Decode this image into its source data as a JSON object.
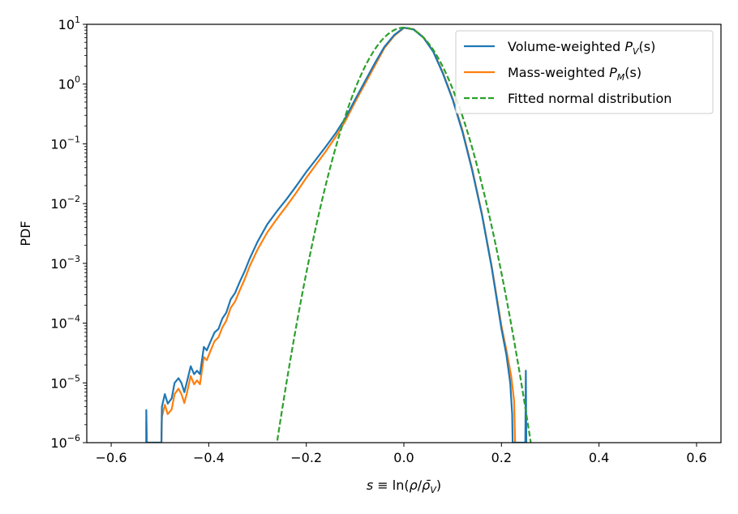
{
  "chart_data": {
    "type": "line",
    "title": "",
    "xlabel": "s ≡ ln(ρ/ρ̄_V)",
    "ylabel": "PDF",
    "y_scale": "log",
    "xlim": [
      -0.65,
      0.65
    ],
    "ylim": [
      1e-06,
      10
    ],
    "x_ticks": [
      -0.6,
      -0.4,
      -0.2,
      0.0,
      0.2,
      0.4,
      0.6
    ],
    "x_tick_labels": [
      "−0.6",
      "−0.4",
      "−0.2",
      "0.0",
      "0.2",
      "0.4",
      "0.6"
    ],
    "y_ticks": [
      1e-06,
      1e-05,
      0.0001,
      0.001,
      0.01,
      0.1,
      1,
      10
    ],
    "y_tick_labels": [
      {
        "base": "10",
        "exp": "−6"
      },
      {
        "base": "10",
        "exp": "−5"
      },
      {
        "base": "10",
        "exp": "−4"
      },
      {
        "base": "10",
        "exp": "−3"
      },
      {
        "base": "10",
        "exp": "−2"
      },
      {
        "base": "10",
        "exp": "−1"
      },
      {
        "base": "10",
        "exp": "0"
      },
      {
        "base": "10",
        "exp": "1"
      }
    ],
    "legend_position": "top-right",
    "series": [
      {
        "name": "Volume-weighted P_V(s)",
        "legend_label": "Volume-weighted ",
        "legend_math": {
          "sym": "P",
          "sub": "V",
          "arg": "(s)"
        },
        "color": "#1f77b4",
        "style": "solid",
        "points": [
          [
            -0.528,
            1e-06
          ],
          [
            -0.528,
            3.5e-06
          ],
          [
            -0.527,
            1e-06
          ],
          [
            -0.497,
            1e-06
          ],
          [
            -0.496,
            4e-06
          ],
          [
            -0.49,
            6.5e-06
          ],
          [
            -0.484,
            4.5e-06
          ],
          [
            -0.476,
            5.5e-06
          ],
          [
            -0.47,
            1e-05
          ],
          [
            -0.462,
            1.2e-05
          ],
          [
            -0.456,
            1e-05
          ],
          [
            -0.45,
            7e-06
          ],
          [
            -0.444,
            1.1e-05
          ],
          [
            -0.437,
            1.9e-05
          ],
          [
            -0.43,
            1.4e-05
          ],
          [
            -0.424,
            1.6e-05
          ],
          [
            -0.418,
            1.4e-05
          ],
          [
            -0.41,
            4e-05
          ],
          [
            -0.404,
            3.5e-05
          ],
          [
            -0.396,
            5e-05
          ],
          [
            -0.388,
            7e-05
          ],
          [
            -0.38,
            8e-05
          ],
          [
            -0.372,
            0.00012
          ],
          [
            -0.364,
            0.00015
          ],
          [
            -0.355,
            0.00025
          ],
          [
            -0.346,
            0.00032
          ],
          [
            -0.336,
            0.0005
          ],
          [
            -0.326,
            0.00075
          ],
          [
            -0.316,
            0.0012
          ],
          [
            -0.3,
            0.0023
          ],
          [
            -0.28,
            0.0045
          ],
          [
            -0.26,
            0.0075
          ],
          [
            -0.24,
            0.012
          ],
          [
            -0.22,
            0.02
          ],
          [
            -0.2,
            0.034
          ],
          [
            -0.18,
            0.055
          ],
          [
            -0.16,
            0.09
          ],
          [
            -0.14,
            0.15
          ],
          [
            -0.12,
            0.27
          ],
          [
            -0.1,
            0.55
          ],
          [
            -0.08,
            1.1
          ],
          [
            -0.06,
            2.2
          ],
          [
            -0.04,
            4.2
          ],
          [
            -0.02,
            6.6
          ],
          [
            0.0,
            8.8
          ],
          [
            0.02,
            8.2
          ],
          [
            0.04,
            6.0
          ],
          [
            0.06,
            3.5
          ],
          [
            0.08,
            1.5
          ],
          [
            0.1,
            0.55
          ],
          [
            0.12,
            0.16
          ],
          [
            0.14,
            0.036
          ],
          [
            0.16,
            0.0065
          ],
          [
            0.18,
            0.00085
          ],
          [
            0.2,
            8e-05
          ],
          [
            0.21,
            3e-05
          ],
          [
            0.218,
            1e-05
          ],
          [
            0.222,
            3e-06
          ],
          [
            0.223,
            1e-06
          ],
          [
            0.249,
            1e-06
          ],
          [
            0.25,
            1.6e-05
          ],
          [
            0.251,
            1e-06
          ]
        ]
      },
      {
        "name": "Mass-weighted P_M(s)",
        "legend_label": "Mass-weighted ",
        "legend_math": {
          "sym": "P",
          "sub": "M",
          "arg": "(s)"
        },
        "color": "#ff7f0e",
        "style": "solid",
        "points": [
          [
            -0.528,
            1e-06
          ],
          [
            -0.528,
            2.2e-06
          ],
          [
            -0.527,
            1e-06
          ],
          [
            -0.497,
            1e-06
          ],
          [
            -0.496,
            2.7e-06
          ],
          [
            -0.49,
            4.3e-06
          ],
          [
            -0.484,
            3e-06
          ],
          [
            -0.476,
            3.6e-06
          ],
          [
            -0.47,
            6.5e-06
          ],
          [
            -0.462,
            8e-06
          ],
          [
            -0.456,
            6.5e-06
          ],
          [
            -0.45,
            4.6e-06
          ],
          [
            -0.444,
            7.2e-06
          ],
          [
            -0.437,
            1.3e-05
          ],
          [
            -0.43,
            9.5e-06
          ],
          [
            -0.424,
            1.1e-05
          ],
          [
            -0.418,
            9.5e-06
          ],
          [
            -0.41,
            2.7e-05
          ],
          [
            -0.404,
            2.4e-05
          ],
          [
            -0.396,
            3.5e-05
          ],
          [
            -0.388,
            5e-05
          ],
          [
            -0.38,
            5.8e-05
          ],
          [
            -0.372,
            8.5e-05
          ],
          [
            -0.364,
            0.00011
          ],
          [
            -0.355,
            0.00018
          ],
          [
            -0.346,
            0.00023
          ],
          [
            -0.336,
            0.00036
          ],
          [
            -0.326,
            0.00055
          ],
          [
            -0.316,
            0.0009
          ],
          [
            -0.3,
            0.0017
          ],
          [
            -0.28,
            0.0033
          ],
          [
            -0.26,
            0.0056
          ],
          [
            -0.24,
            0.0092
          ],
          [
            -0.22,
            0.0155
          ],
          [
            -0.2,
            0.027
          ],
          [
            -0.18,
            0.045
          ],
          [
            -0.16,
            0.075
          ],
          [
            -0.14,
            0.13
          ],
          [
            -0.12,
            0.24
          ],
          [
            -0.1,
            0.5
          ],
          [
            -0.08,
            1.0
          ],
          [
            -0.06,
            2.0
          ],
          [
            -0.04,
            4.0
          ],
          [
            -0.02,
            6.4
          ],
          [
            0.0,
            8.7
          ],
          [
            0.02,
            8.3
          ],
          [
            0.04,
            6.1
          ],
          [
            0.06,
            3.6
          ],
          [
            0.08,
            1.55
          ],
          [
            0.1,
            0.57
          ],
          [
            0.12,
            0.17
          ],
          [
            0.14,
            0.038
          ],
          [
            0.16,
            0.0068
          ],
          [
            0.18,
            0.0009
          ],
          [
            0.2,
            9e-05
          ],
          [
            0.21,
            3.6e-05
          ],
          [
            0.22,
            1.3e-05
          ],
          [
            0.226,
            5e-06
          ],
          [
            0.228,
            1e-06
          ]
        ]
      },
      {
        "name": "Fitted normal distribution",
        "legend_label": "Fitted normal distribution",
        "color": "#2ca02c",
        "style": "dashed",
        "gaussian": {
          "peak": 8.8,
          "mean": 0.0,
          "sigma": 0.046
        },
        "x_range": [
          -0.262,
          0.262
        ]
      }
    ]
  }
}
